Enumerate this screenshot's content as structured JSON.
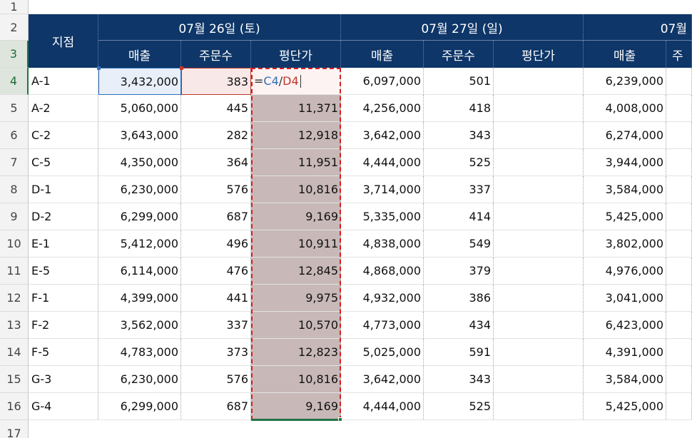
{
  "sheet": {
    "branch_header": "지점",
    "date_groups": [
      {
        "label": "07월 26일 (토)"
      },
      {
        "label": "07월 27일 (일)"
      },
      {
        "label": "07월"
      }
    ],
    "sub_headers": [
      "매출",
      "주문수",
      "평단가",
      "매출",
      "주문수",
      "평단가",
      "매출",
      "주"
    ],
    "row_numbers": [
      "1",
      "2",
      "3",
      "4",
      "5",
      "6",
      "7",
      "8",
      "9",
      "10",
      "11",
      "12",
      "13",
      "14",
      "15",
      "16",
      "17"
    ],
    "formula": {
      "eq": "=",
      "ref1": "C4",
      "slash": "/",
      "ref2": "D4"
    },
    "rows": [
      {
        "branch": "A-1",
        "s1": "3,432,000",
        "o1": "383",
        "a1": "",
        "s2": "6,097,000",
        "o2": "501",
        "s3": "6,239,000"
      },
      {
        "branch": "A-2",
        "s1": "5,060,000",
        "o1": "445",
        "a1": "11,371",
        "s2": "4,256,000",
        "o2": "418",
        "s3": "4,008,000"
      },
      {
        "branch": "C-2",
        "s1": "3,643,000",
        "o1": "282",
        "a1": "12,918",
        "s2": "3,642,000",
        "o2": "343",
        "s3": "6,274,000"
      },
      {
        "branch": "C-5",
        "s1": "4,350,000",
        "o1": "364",
        "a1": "11,951",
        "s2": "4,444,000",
        "o2": "525",
        "s3": "3,944,000"
      },
      {
        "branch": "D-1",
        "s1": "6,230,000",
        "o1": "576",
        "a1": "10,816",
        "s2": "3,714,000",
        "o2": "337",
        "s3": "3,584,000"
      },
      {
        "branch": "D-2",
        "s1": "6,299,000",
        "o1": "687",
        "a1": "9,169",
        "s2": "5,335,000",
        "o2": "414",
        "s3": "5,425,000"
      },
      {
        "branch": "E-1",
        "s1": "5,412,000",
        "o1": "496",
        "a1": "10,911",
        "s2": "4,838,000",
        "o2": "549",
        "s3": "3,802,000"
      },
      {
        "branch": "E-5",
        "s1": "6,114,000",
        "o1": "476",
        "a1": "12,845",
        "s2": "4,868,000",
        "o2": "379",
        "s3": "4,976,000"
      },
      {
        "branch": "F-1",
        "s1": "4,399,000",
        "o1": "441",
        "a1": "9,975",
        "s2": "4,932,000",
        "o2": "386",
        "s3": "3,041,000"
      },
      {
        "branch": "F-2",
        "s1": "3,562,000",
        "o1": "337",
        "a1": "10,570",
        "s2": "4,773,000",
        "o2": "434",
        "s3": "6,423,000"
      },
      {
        "branch": "F-5",
        "s1": "4,783,000",
        "o1": "373",
        "a1": "12,823",
        "s2": "5,025,000",
        "o2": "591",
        "s3": "4,391,000"
      },
      {
        "branch": "G-3",
        "s1": "6,230,000",
        "o1": "576",
        "a1": "10,816",
        "s2": "3,642,000",
        "o2": "343",
        "s3": "3,584,000"
      },
      {
        "branch": "G-4",
        "s1": "6,299,000",
        "o1": "687",
        "a1": "9,169",
        "s2": "4,444,000",
        "o2": "525",
        "s3": "5,425,000"
      }
    ],
    "colors": {
      "header_bg": "#0e3668",
      "avg_fill": "#c8b8b8",
      "ref1_color": "#2f6fb7",
      "ref2_color": "#c0392b",
      "copy_border": "#d81f1f",
      "select_green": "#217346"
    }
  }
}
